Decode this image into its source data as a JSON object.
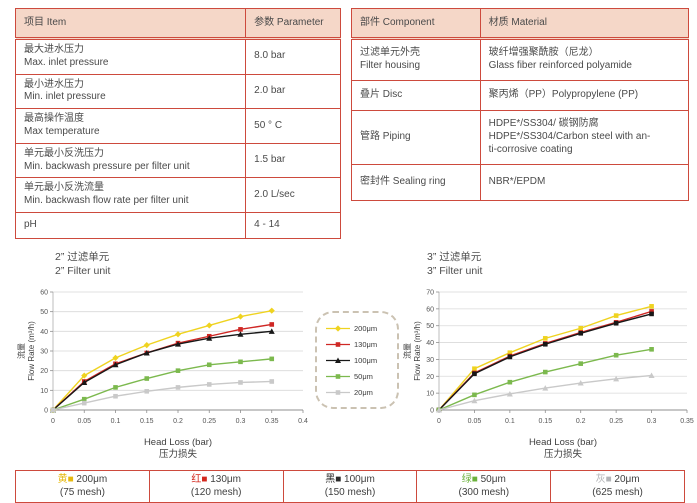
{
  "colors": {
    "table_border": "#cd4a3d",
    "header_bg": "#f5d7c8",
    "yellow": "#e6b80e",
    "red": "#d3281e",
    "black": "#2b2b2b",
    "green": "#6cb23c",
    "gray": "#b3b5b8"
  },
  "icons": {
    "swatch": "■"
  },
  "spec_table": {
    "header": {
      "item": "项目 Item",
      "parameter": "参数 Parameter"
    },
    "rows": [
      {
        "item": "最大进水压力\nMax. inlet pressure",
        "value": "8.0 bar"
      },
      {
        "item": "最小进水压力\nMin. inlet pressure",
        "value": "2.0 bar"
      },
      {
        "item": "最高操作温度\nMax temperature",
        "value": "50 ° C"
      },
      {
        "item": "单元最小反洗压力\nMin. backwash pressure per filter unit",
        "value": "1.5 bar"
      },
      {
        "item": "单元最小反洗流量\nMin. backwash flow rate per filter unit",
        "value": "2.0 L/sec"
      },
      {
        "item": "pH",
        "value": "4 - 14"
      }
    ]
  },
  "material_table": {
    "header": {
      "component": "部件 Component",
      "material": "材质 Material"
    },
    "rows": [
      {
        "component": "过滤单元外壳\nFilter housing",
        "material": "玻纤增强聚酰胺（尼龙）\nGlass fiber reinforced polyamide"
      },
      {
        "component": "叠片 Disc",
        "material": "聚丙烯（PP）Polypropylene (PP)"
      },
      {
        "component": "管路 Piping",
        "material": "HDPE*/SS304/ 碳钢防腐\nHDPE*/SS304/Carbon steel with an-\nti-corrosive coating"
      },
      {
        "component": "密封件 Sealing ring",
        "material": "NBR*/EPDM"
      }
    ]
  },
  "chart_data": [
    {
      "type": "line",
      "title_zh": "2” 过滤单元",
      "title_en": "2” Filter unit",
      "xlabel_en": "Head Loss (bar)",
      "xlabel_zh": "压力损失",
      "ylabel_zh": "流量",
      "ylabel_en": "Flow Rate (m³/h)",
      "xlim": [
        0,
        0.4
      ],
      "ylim": [
        0,
        60
      ],
      "x_ticks": [
        0,
        0.05,
        0.1,
        0.15,
        0.2,
        0.25,
        0.3,
        0.35,
        0.4
      ],
      "y_ticks": [
        0,
        10,
        20,
        30,
        40,
        50,
        60
      ],
      "grid": true,
      "x": [
        0,
        0.05,
        0.1,
        0.15,
        0.2,
        0.25,
        0.3,
        0.35
      ],
      "series": [
        {
          "name": "200μm",
          "color": "#efd320",
          "marker": "diamond",
          "values": [
            0,
            17.5,
            26.5,
            33,
            38.5,
            43,
            47.5,
            50.5
          ]
        },
        {
          "name": "130μm",
          "color": "#cf2724",
          "marker": "square",
          "values": [
            0,
            14.5,
            23.5,
            29,
            34,
            37.5,
            41,
            43.5
          ]
        },
        {
          "name": "100μm",
          "color": "#181818",
          "marker": "triangle",
          "values": [
            0,
            14,
            23,
            29,
            33.5,
            36.5,
            38.5,
            40
          ]
        },
        {
          "name": "50μm",
          "color": "#7cb94e",
          "marker": "square",
          "values": [
            0,
            5.5,
            11.5,
            16,
            20,
            23,
            24.5,
            26
          ]
        },
        {
          "name": "20μm",
          "color": "#c9c9c9",
          "marker": "square",
          "values": [
            0,
            3.5,
            7,
            9.5,
            11.5,
            13,
            14,
            14.5
          ]
        }
      ]
    },
    {
      "type": "line",
      "title_zh": "3” 过滤单元",
      "title_en": "3” Filter unit",
      "xlabel_en": "Head Loss (bar)",
      "xlabel_zh": "压力损失",
      "ylabel_zh": "流量",
      "ylabel_en": "Flow Rate (m³/h)",
      "xlim": [
        0,
        0.35
      ],
      "ylim": [
        0,
        70
      ],
      "x_ticks": [
        0,
        0.05,
        0.1,
        0.15,
        0.2,
        0.25,
        0.3,
        0.35
      ],
      "y_ticks": [
        0,
        10,
        20,
        30,
        40,
        50,
        60,
        70
      ],
      "grid": true,
      "x": [
        0,
        0.05,
        0.1,
        0.15,
        0.2,
        0.25,
        0.3
      ],
      "series": [
        {
          "name": "200μm",
          "color": "#efd320",
          "marker": "square",
          "values": [
            0,
            24.5,
            34,
            42.5,
            48.5,
            56,
            61.5
          ]
        },
        {
          "name": "130μm",
          "color": "#cf2724",
          "marker": "square",
          "values": [
            0,
            22,
            32,
            39.5,
            46,
            52,
            58.5
          ]
        },
        {
          "name": "100μm",
          "color": "#181818",
          "marker": "square",
          "values": [
            0,
            21.5,
            31.5,
            39,
            45.5,
            51.5,
            57
          ]
        },
        {
          "name": "50μm",
          "color": "#7cb94e",
          "marker": "square",
          "values": [
            0,
            9,
            16.5,
            22.5,
            27.5,
            32.5,
            36
          ]
        },
        {
          "name": "20μm",
          "color": "#c9c9c9",
          "marker": "triangle",
          "values": [
            0,
            5.5,
            9.5,
            13,
            16,
            18.5,
            20.5
          ]
        }
      ]
    }
  ],
  "legend_box": {
    "entries": [
      {
        "label": "200μm",
        "color": "#efd320",
        "marker": "diamond"
      },
      {
        "label": "130μm",
        "color": "#cf2724",
        "marker": "square"
      },
      {
        "label": "100μm",
        "color": "#181818",
        "marker": "triangle"
      },
      {
        "label": "50μm",
        "color": "#7cb94e",
        "marker": "square"
      },
      {
        "label": "20μm",
        "color": "#c9c9c9",
        "marker": "square"
      }
    ]
  },
  "mesh_table": {
    "cells": [
      {
        "cn": "黄",
        "color": "#e6b80e",
        "size": " 200μm",
        "mesh": "(75 mesh)"
      },
      {
        "cn": "红",
        "color": "#d3281e",
        "size": " 130μm",
        "mesh": "(120 mesh)"
      },
      {
        "cn": "黑",
        "color": "#2b2b2b",
        "size": " 100μm",
        "mesh": "(150 mesh)"
      },
      {
        "cn": "绿",
        "color": "#6cb23c",
        "size": " 50μm",
        "mesh": "(300 mesh)"
      },
      {
        "cn": "灰",
        "color": "#b3b5b8",
        "size": " 20μm",
        "mesh": "(625 mesh)"
      }
    ]
  }
}
